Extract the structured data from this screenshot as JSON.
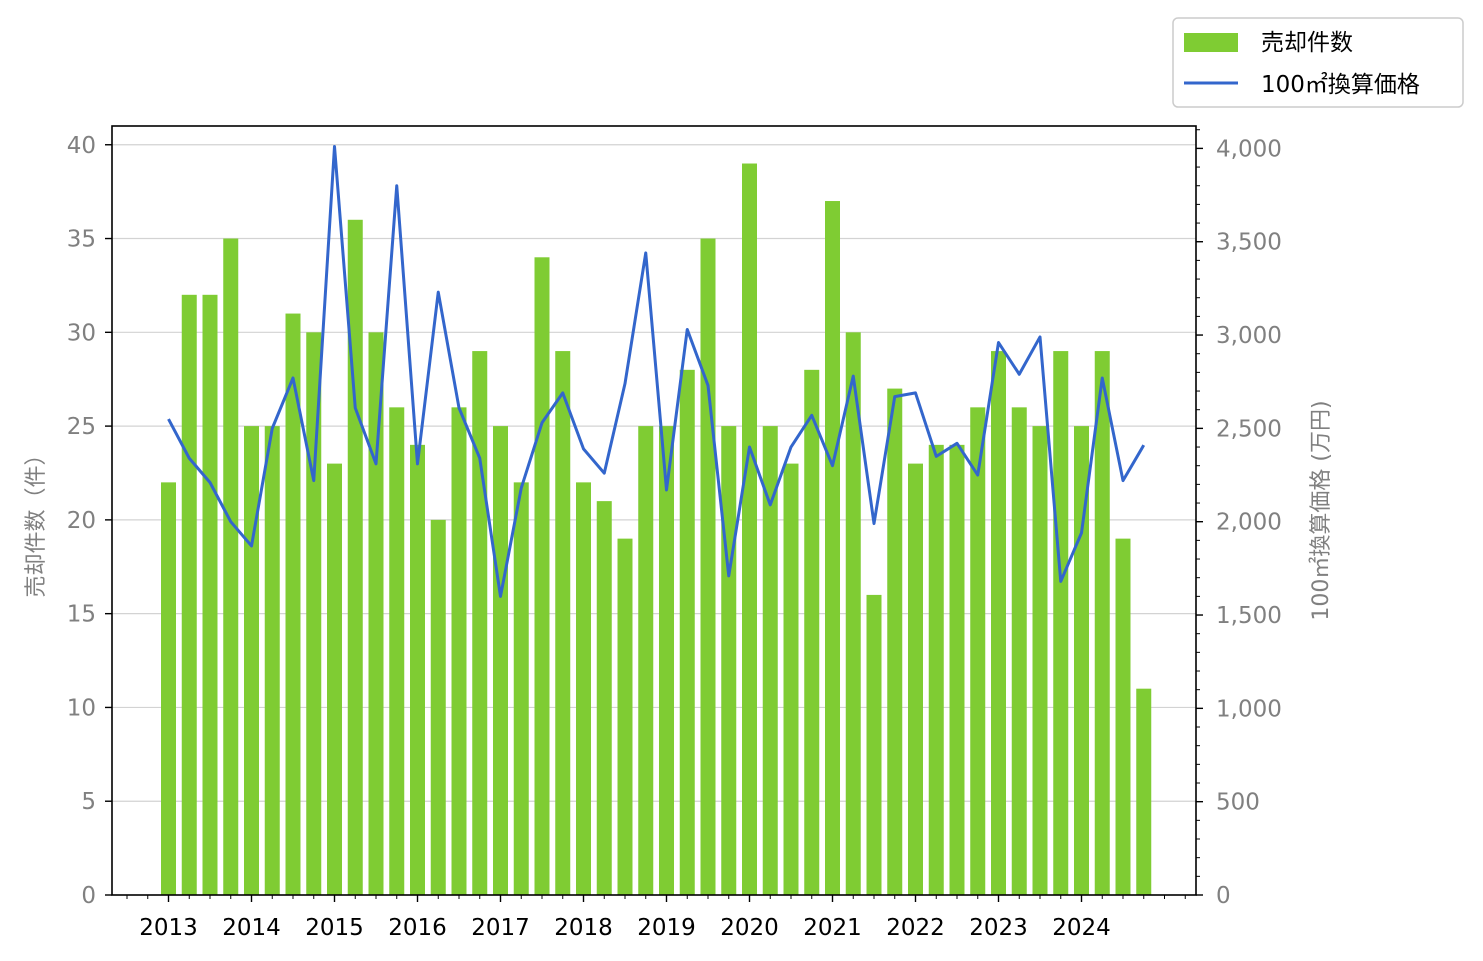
{
  "chart_data": {
    "type": "bar",
    "title": "",
    "xlabel": "",
    "ylabel_left": "売却件数（件）",
    "ylabel_right": "100㎡換算価格 (万円)",
    "ylim_left": [
      0,
      41
    ],
    "ylim_right": [
      0,
      4120
    ],
    "yticks_left": [
      "0",
      "5",
      "10",
      "15",
      "20",
      "25",
      "30",
      "35",
      "40"
    ],
    "yticks_right": [
      "0",
      "500",
      "1,000",
      "1,500",
      "2,000",
      "2,500",
      "3,000",
      "3,500",
      "4,000"
    ],
    "x_tick_labels": [
      "2013",
      "2014",
      "2015",
      "2016",
      "2017",
      "2018",
      "2019",
      "2020",
      "2021",
      "2022",
      "2023",
      "2024"
    ],
    "grid": "horizontal",
    "legend": "top-right",
    "colors": {
      "bars": "#7fcc33",
      "line": "#3366cc",
      "grid": "#d3d3d3",
      "tick_text": "#808080"
    },
    "quarters": [
      "2013Q1",
      "2013Q2",
      "2013Q3",
      "2013Q4",
      "2014Q1",
      "2014Q2",
      "2014Q3",
      "2014Q4",
      "2015Q1",
      "2015Q2",
      "2015Q3",
      "2015Q4",
      "2016Q1",
      "2016Q2",
      "2016Q3",
      "2016Q4",
      "2017Q1",
      "2017Q2",
      "2017Q3",
      "2017Q4",
      "2018Q1",
      "2018Q2",
      "2018Q3",
      "2018Q4",
      "2019Q1",
      "2019Q2",
      "2019Q3",
      "2019Q4",
      "2020Q1",
      "2020Q2",
      "2020Q3",
      "2020Q4",
      "2021Q1",
      "2021Q2",
      "2021Q3",
      "2021Q4",
      "2022Q1",
      "2022Q2",
      "2022Q3",
      "2022Q4",
      "2023Q1",
      "2023Q2",
      "2023Q3",
      "2023Q4",
      "2024Q1",
      "2024Q2",
      "2024Q3",
      "2024Q4"
    ],
    "series": [
      {
        "name": "売却件数",
        "type": "bar",
        "axis": "left",
        "values": [
          22,
          32,
          32,
          35,
          25,
          25,
          31,
          30,
          23,
          36,
          30,
          26,
          24,
          20,
          26,
          29,
          25,
          22,
          34,
          29,
          22,
          21,
          19,
          25,
          25,
          28,
          35,
          25,
          39,
          25,
          23,
          28,
          37,
          30,
          16,
          27,
          23,
          24,
          24,
          26,
          29,
          26,
          25,
          29,
          25,
          29,
          19,
          11
        ]
      },
      {
        "name": "100㎡換算価格",
        "type": "line",
        "axis": "right",
        "values": [
          2550,
          2340,
          2210,
          2000,
          1870,
          2500,
          2770,
          2220,
          4010,
          2610,
          2310,
          3800,
          2310,
          3230,
          2610,
          2340,
          1600,
          2180,
          2530,
          2690,
          2390,
          2260,
          2740,
          3440,
          2170,
          3030,
          2730,
          1710,
          2400,
          2090,
          2400,
          2570,
          2300,
          2780,
          1990,
          2670,
          2690,
          2350,
          2420,
          2250,
          2960,
          2790,
          2990,
          1680,
          1940,
          2770,
          2220,
          2410
        ]
      }
    ]
  }
}
